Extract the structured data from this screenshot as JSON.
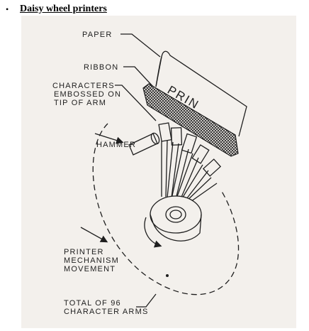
{
  "heading": {
    "bullet": "•",
    "title": "Daisy wheel printers"
  },
  "diagram": {
    "labels": {
      "paper": "PAPER",
      "ribbon": "RIBBON",
      "characters_line1": "CHARACTERS",
      "characters_line2": "EMBOSSED ON",
      "characters_line3": "TIP OF ARM",
      "hammer": "HAMMER",
      "mechanism_line1": "PRINTER",
      "mechanism_line2": "MECHANISM",
      "mechanism_line3": "MOVEMENT",
      "arms_line1": "TOTAL OF 96",
      "arms_line2": "CHARACTER ARMS"
    },
    "paper_text": "PRIN"
  },
  "colors": {
    "background": "#f3f0ec",
    "ink": "#1e1e1e"
  }
}
